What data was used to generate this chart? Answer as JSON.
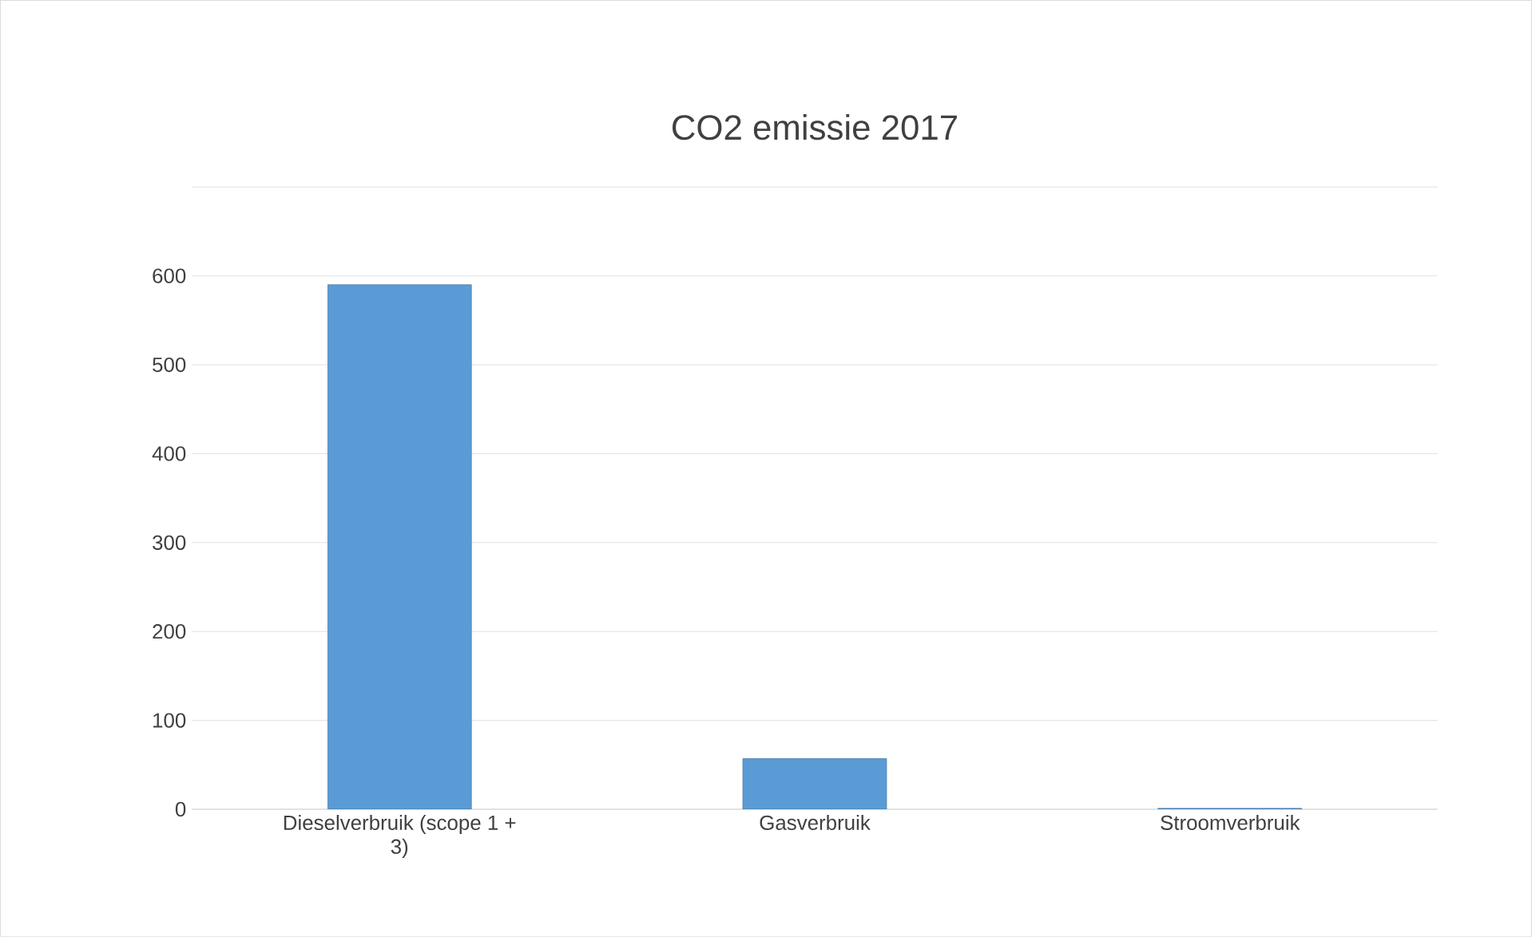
{
  "chart_data": {
    "type": "bar",
    "title": "CO2 emissie 2017",
    "categories": [
      "Dieselverbruik (scope 1 + 3)",
      "Gasverbruik",
      "Stroomverbruik"
    ],
    "values": [
      590,
      57,
      1
    ],
    "color": "#5b9bd5",
    "ylim": [
      0,
      700
    ],
    "yticks": [
      0,
      100,
      200,
      300,
      400,
      500,
      600,
      {
        "value": 700,
        "label": null
      }
    ],
    "grid": "y"
  }
}
